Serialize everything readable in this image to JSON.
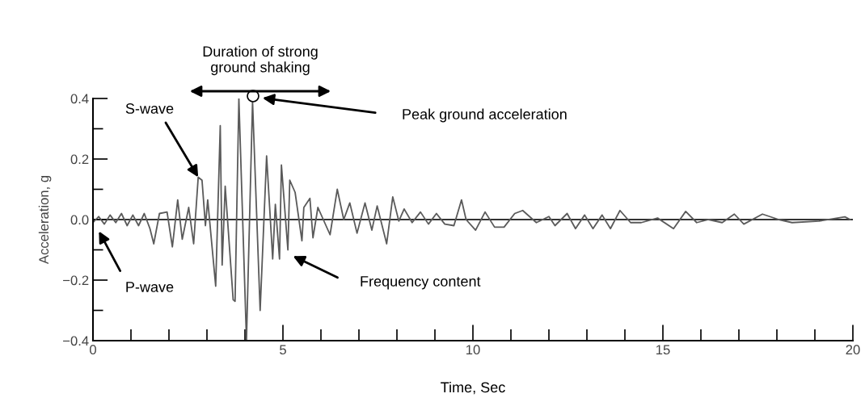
{
  "chart_data": {
    "type": "line",
    "xlabel": "Time, Sec",
    "ylabel": "Acceleration, g",
    "x": [
      0,
      0.15,
      0.3,
      0.45,
      0.6,
      0.75,
      0.9,
      1.05,
      1.2,
      1.35,
      1.5,
      1.6,
      1.75,
      1.95,
      2.09,
      2.23,
      2.35,
      2.52,
      2.65,
      2.77,
      2.87,
      2.96,
      3.02,
      3.23,
      3.35,
      3.4,
      3.48,
      3.69,
      3.74,
      3.84,
      4.04,
      4.2,
      4.4,
      4.57,
      4.73,
      4.8,
      4.91,
      4.96,
      5.13,
      5.18,
      5.32,
      5.5,
      5.55,
      5.71,
      5.79,
      5.92,
      6.24,
      6.43,
      6.6,
      6.76,
      6.95,
      7.16,
      7.34,
      7.48,
      7.73,
      7.89,
      8.05,
      8.19,
      8.4,
      8.62,
      8.83,
      9.04,
      9.26,
      9.5,
      9.7,
      9.82,
      10.07,
      10.32,
      10.57,
      10.82,
      11.1,
      11.31,
      11.67,
      12.0,
      12.16,
      12.48,
      12.7,
      12.94,
      13.16,
      13.4,
      13.62,
      13.87,
      14.15,
      14.43,
      14.86,
      15.28,
      15.6,
      15.89,
      16.2,
      16.56,
      16.88,
      17.13,
      17.62,
      18.05,
      18.4,
      19.11,
      19.79,
      19.93
    ],
    "series": [
      {
        "color": "#5a5a5a",
        "values": [
          -0.01,
          0.01,
          -0.015,
          0.015,
          -0.01,
          0.02,
          -0.02,
          0.015,
          -0.02,
          0.02,
          -0.03,
          -0.08,
          0.02,
          0.025,
          -0.09,
          0.065,
          -0.065,
          0.04,
          -0.08,
          0.14,
          0.13,
          -0.02,
          0.065,
          -0.22,
          0.31,
          -0.15,
          0.11,
          -0.265,
          -0.27,
          0.4,
          -0.4,
          0.39,
          -0.3,
          0.21,
          -0.13,
          0.05,
          -0.13,
          0.18,
          -0.1,
          0.13,
          0.09,
          -0.07,
          0.04,
          0.07,
          -0.06,
          0.04,
          -0.05,
          0.1,
          0.0,
          0.055,
          -0.045,
          0.055,
          -0.035,
          0.045,
          -0.08,
          0.075,
          -0.005,
          0.035,
          -0.01,
          0.025,
          -0.015,
          0.02,
          -0.015,
          -0.02,
          0.065,
          0.0,
          -0.035,
          0.025,
          -0.025,
          -0.025,
          0.02,
          0.03,
          -0.01,
          0.01,
          -0.02,
          0.02,
          -0.03,
          0.015,
          -0.03,
          0.015,
          -0.03,
          0.03,
          -0.01,
          -0.01,
          0.005,
          -0.03,
          0.027,
          -0.01,
          0.0,
          -0.01,
          0.018,
          -0.015,
          0.018,
          0.0,
          -0.01,
          -0.005,
          0.009,
          0.0
        ]
      }
    ],
    "xlim": [
      0,
      20
    ],
    "ylim": [
      -0.4,
      0.4
    ],
    "xticks": [
      0,
      {
        "value": 1,
        "label": null
      },
      {
        "value": 2,
        "label": null
      },
      {
        "value": 3,
        "label": null
      },
      {
        "value": 4,
        "label": null
      },
      5,
      {
        "value": 6,
        "label": null
      },
      {
        "value": 7,
        "label": null
      },
      {
        "value": 8,
        "label": null
      },
      {
        "value": 9,
        "label": null
      },
      10,
      {
        "value": 11,
        "label": null
      },
      {
        "value": 12,
        "label": null
      },
      {
        "value": 13,
        "label": null
      },
      {
        "value": 14,
        "label": null
      },
      15,
      {
        "value": 16,
        "label": null
      },
      {
        "value": 17,
        "label": null
      },
      {
        "value": 18,
        "label": null
      },
      {
        "value": 19,
        "label": null
      },
      20
    ],
    "yticks": [
      {
        "value": -0.4,
        "label": "−0.4"
      },
      {
        "value": -0.3,
        "label": null
      },
      {
        "value": -0.2,
        "label": "−0.2"
      },
      {
        "value": -0.1,
        "label": null
      },
      {
        "value": 0,
        "label": "0.0"
      },
      {
        "value": 0.1,
        "label": null
      },
      {
        "value": 0.2,
        "label": "0.2"
      },
      {
        "value": 0.3,
        "label": null
      },
      {
        "value": 0.4,
        "label": "0.4"
      }
    ],
    "ref_lines": [
      {
        "axis": "y",
        "value": 0,
        "color": "#333333"
      }
    ],
    "annotations": [
      {
        "text": "S-wave",
        "x": 2.77,
        "y": 0.14
      },
      "P-wave",
      "Peak ground acceleration",
      "Frequency content",
      "Duration of strong\nground shaking"
    ],
    "grid": false,
    "legend": false,
    "marker": "none",
    "line_style": "solid"
  }
}
